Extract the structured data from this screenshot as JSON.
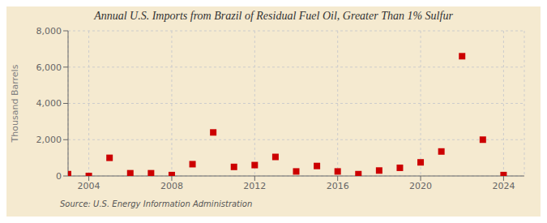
{
  "chart_data": {
    "type": "scatter",
    "title": "Annual U.S. Imports from Brazil of Residual Fuel Oil, Greater Than 1% Sulfur",
    "ylabel": "Thousand Barrels",
    "annotations": [
      "Source: U.S. Energy Information Administration"
    ],
    "x": [
      2003,
      2004,
      2005,
      2006,
      2007,
      2008,
      2009,
      2010,
      2011,
      2012,
      2013,
      2014,
      2015,
      2016,
      2017,
      2018,
      2019,
      2020,
      2021,
      2022,
      2023,
      2024
    ],
    "values": [
      100,
      0,
      1000,
      150,
      150,
      50,
      650,
      2400,
      500,
      600,
      1050,
      250,
      550,
      250,
      100,
      300,
      450,
      750,
      1350,
      6600,
      2000,
      50
    ],
    "color": "#cc0000",
    "marker": "square",
    "grid": true,
    "xlim": [
      2003,
      2025
    ],
    "ylim": [
      0,
      8000
    ],
    "xticks": [
      2004,
      2008,
      2012,
      2016,
      2020,
      2024
    ],
    "yticks": [
      0,
      {
        "value": 2000,
        "label": "2,000"
      },
      {
        "value": 4000,
        "label": "4,000"
      },
      {
        "value": 6000,
        "label": "6,000"
      },
      {
        "value": 8000,
        "label": "8,000"
      }
    ]
  }
}
